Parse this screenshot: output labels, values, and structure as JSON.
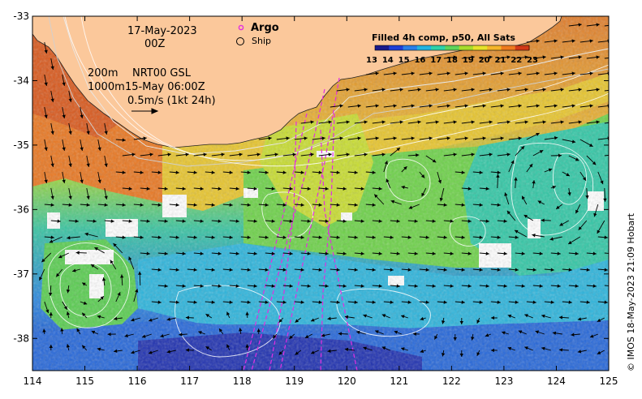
{
  "map": {
    "x_ticks": [
      "114",
      "115",
      "116",
      "117",
      "118",
      "119",
      "120",
      "121",
      "122",
      "123",
      "124",
      "125"
    ],
    "y_ticks": [
      "-33",
      "-34",
      "-35",
      "-36",
      "-37",
      "-38"
    ],
    "lon_range": [
      114,
      125
    ],
    "lat_range": [
      -38.5,
      -33
    ],
    "land_color": "#fbc89b"
  },
  "annotations": {
    "date": "17-May-2023",
    "hour": "00Z",
    "depth_line1": "200m",
    "depth_line2": "1000m",
    "product": "NRT00 GSL",
    "product_time": "15-May 06:00Z",
    "scale": "0.5m/s (1kt 24h)"
  },
  "legend": {
    "argo_label": "Argo",
    "ship_label": "Ship",
    "argo_color": "#e22ee2"
  },
  "colorbar": {
    "title": "Filled 4h comp, p50, All Sats",
    "labels": [
      "13",
      "14",
      "15",
      "16",
      "17",
      "18",
      "19",
      "20",
      "21",
      "22",
      "23"
    ],
    "colors": [
      "#1a1a8c",
      "#1f3fd6",
      "#2a7fe8",
      "#22b3e0",
      "#2fd1a8",
      "#5fd35a",
      "#a8dc2c",
      "#e6e22a",
      "#f5b52a",
      "#ee7a1e",
      "#d23a17"
    ]
  },
  "credit": "© IMOS 18-May-2023 21:09 Hobart"
}
